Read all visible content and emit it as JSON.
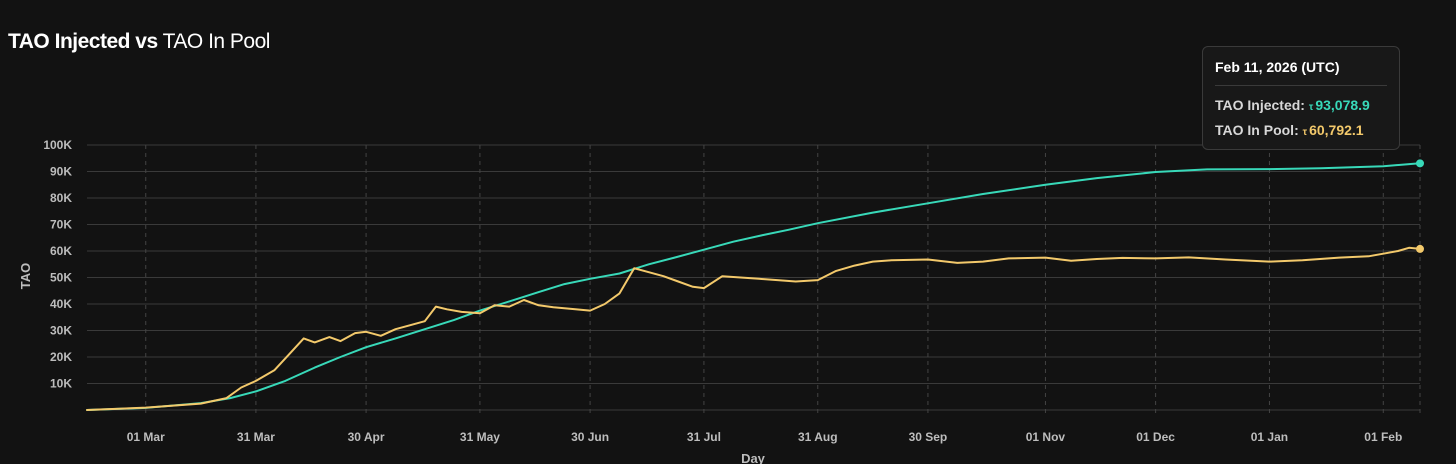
{
  "title": {
    "part1": "TAO Injected vs",
    "part2": "TAO In Pool"
  },
  "tooltip": {
    "date": "Feb 11, 2026 (UTC)",
    "injected_label": "TAO Injected:",
    "injected_symbol": "τ",
    "injected_value": "93,078.9",
    "pool_label": "TAO In Pool:",
    "pool_symbol": "τ",
    "pool_value": "60,792.1"
  },
  "chart_data": {
    "type": "line",
    "title": "TAO Injected vs TAO In Pool",
    "xlabel": "Day",
    "ylabel": "TAO",
    "x_range": [
      "2025-02-13",
      "2026-02-11"
    ],
    "ylim": [
      0,
      100000
    ],
    "y_ticks": [
      10000,
      20000,
      30000,
      40000,
      50000,
      60000,
      70000,
      80000,
      90000,
      100000
    ],
    "y_tick_labels": [
      "10K",
      "20K",
      "30K",
      "40K",
      "50K",
      "60K",
      "70K",
      "80K",
      "90K",
      "100K"
    ],
    "x_ticks": [
      "2025-03-01",
      "2025-03-31",
      "2025-04-30",
      "2025-05-31",
      "2025-06-30",
      "2025-07-31",
      "2025-08-31",
      "2025-09-30",
      "2025-11-01",
      "2025-12-01",
      "2026-01-01",
      "2026-02-01"
    ],
    "x_tick_labels": [
      "01 Mar",
      "31 Mar",
      "30 Apr",
      "31 May",
      "30 Jun",
      "31 Jul",
      "31 Aug",
      "30 Sep",
      "01 Nov",
      "01 Dec",
      "01 Jan",
      "01 Feb"
    ],
    "grid": true,
    "legend": "none",
    "series": [
      {
        "name": "TAO Injected",
        "color": "#38d9b9",
        "points": [
          [
            "2025-02-13",
            0
          ],
          [
            "2025-03-01",
            800
          ],
          [
            "2025-03-16",
            2600
          ],
          [
            "2025-03-24",
            4500
          ],
          [
            "2025-03-31",
            7000
          ],
          [
            "2025-04-08",
            11000
          ],
          [
            "2025-04-16",
            16000
          ],
          [
            "2025-04-23",
            20000
          ],
          [
            "2025-04-30",
            23700
          ],
          [
            "2025-05-08",
            27000
          ],
          [
            "2025-05-16",
            30500
          ],
          [
            "2025-05-24",
            34000
          ],
          [
            "2025-05-31",
            37500
          ],
          [
            "2025-06-08",
            41000
          ],
          [
            "2025-06-16",
            44500
          ],
          [
            "2025-06-23",
            47500
          ],
          [
            "2025-06-30",
            49500
          ],
          [
            "2025-07-08",
            51500
          ],
          [
            "2025-07-16",
            55000
          ],
          [
            "2025-07-23",
            57500
          ],
          [
            "2025-07-31",
            60500
          ],
          [
            "2025-08-08",
            63500
          ],
          [
            "2025-08-16",
            66000
          ],
          [
            "2025-08-23",
            68000
          ],
          [
            "2025-08-31",
            70500
          ],
          [
            "2025-09-15",
            74500
          ],
          [
            "2025-09-30",
            78000
          ],
          [
            "2025-10-15",
            81500
          ],
          [
            "2025-11-01",
            85000
          ],
          [
            "2025-11-15",
            87500
          ],
          [
            "2025-12-01",
            89800
          ],
          [
            "2025-12-15",
            90800
          ],
          [
            "2026-01-01",
            90900
          ],
          [
            "2026-01-15",
            91200
          ],
          [
            "2026-02-01",
            92000
          ],
          [
            "2026-02-11",
            93078.9
          ]
        ]
      },
      {
        "name": "TAO In Pool",
        "color": "#f3c96b",
        "points": [
          [
            "2025-02-13",
            0
          ],
          [
            "2025-03-01",
            900
          ],
          [
            "2025-03-16",
            2400
          ],
          [
            "2025-03-23",
            4500
          ],
          [
            "2025-03-27",
            8500
          ],
          [
            "2025-03-31",
            11000
          ],
          [
            "2025-04-05",
            15000
          ],
          [
            "2025-04-09",
            21000
          ],
          [
            "2025-04-13",
            27000
          ],
          [
            "2025-04-16",
            25500
          ],
          [
            "2025-04-20",
            27500
          ],
          [
            "2025-04-23",
            26000
          ],
          [
            "2025-04-27",
            29000
          ],
          [
            "2025-04-30",
            29500
          ],
          [
            "2025-05-04",
            28000
          ],
          [
            "2025-05-08",
            30500
          ],
          [
            "2025-05-12",
            32000
          ],
          [
            "2025-05-16",
            33500
          ],
          [
            "2025-05-19",
            39000
          ],
          [
            "2025-05-22",
            38000
          ],
          [
            "2025-05-26",
            37000
          ],
          [
            "2025-05-31",
            36500
          ],
          [
            "2025-06-04",
            39500
          ],
          [
            "2025-06-08",
            39000
          ],
          [
            "2025-06-12",
            41500
          ],
          [
            "2025-06-16",
            39500
          ],
          [
            "2025-06-20",
            38800
          ],
          [
            "2025-06-26",
            38000
          ],
          [
            "2025-06-30",
            37500
          ],
          [
            "2025-07-04",
            40000
          ],
          [
            "2025-07-08",
            44000
          ],
          [
            "2025-07-12",
            53500
          ],
          [
            "2025-07-16",
            52000
          ],
          [
            "2025-07-20",
            50500
          ],
          [
            "2025-07-24",
            48500
          ],
          [
            "2025-07-28",
            46500
          ],
          [
            "2025-07-31",
            46000
          ],
          [
            "2025-08-05",
            50500
          ],
          [
            "2025-08-10",
            50000
          ],
          [
            "2025-08-15",
            49500
          ],
          [
            "2025-08-20",
            49000
          ],
          [
            "2025-08-25",
            48500
          ],
          [
            "2025-08-31",
            49000
          ],
          [
            "2025-09-05",
            52500
          ],
          [
            "2025-09-10",
            54500
          ],
          [
            "2025-09-15",
            56000
          ],
          [
            "2025-09-20",
            56500
          ],
          [
            "2025-09-30",
            56800
          ],
          [
            "2025-10-08",
            55500
          ],
          [
            "2025-10-15",
            56000
          ],
          [
            "2025-10-22",
            57200
          ],
          [
            "2025-11-01",
            57500
          ],
          [
            "2025-11-08",
            56300
          ],
          [
            "2025-11-15",
            57000
          ],
          [
            "2025-11-22",
            57400
          ],
          [
            "2025-12-01",
            57200
          ],
          [
            "2025-12-10",
            57600
          ],
          [
            "2025-12-20",
            56800
          ],
          [
            "2026-01-01",
            56000
          ],
          [
            "2026-01-10",
            56500
          ],
          [
            "2026-01-20",
            57500
          ],
          [
            "2026-01-28",
            58000
          ],
          [
            "2026-02-01",
            59000
          ],
          [
            "2026-02-05",
            60000
          ],
          [
            "2026-02-08",
            61200
          ],
          [
            "2026-02-11",
            60792.1
          ]
        ]
      }
    ]
  }
}
